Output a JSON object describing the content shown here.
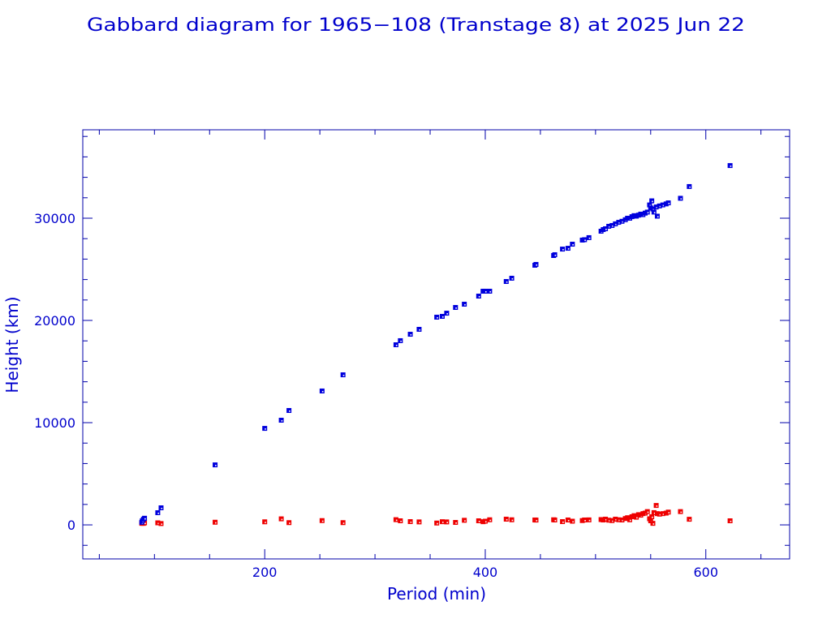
{
  "chart_data": {
    "type": "scatter",
    "title": "Gabbard diagram for 1965−108 (Transtage 8) at 2025 Jun 22",
    "xlabel": "Period (min)",
    "ylabel": "Height (km)",
    "xlim": [
      35,
      676
    ],
    "ylim": [
      -3330,
      38650
    ],
    "x_ticks": [
      200,
      400,
      600
    ],
    "x_minor_step": 50,
    "y_ticks": [
      0,
      10000,
      20000,
      30000
    ],
    "y_minor_step": 2000,
    "grid": false,
    "axis_color": "#0000aa",
    "series": [
      {
        "key": "apogee",
        "color": "#0000dd"
      },
      {
        "key": "perigee",
        "color": "#ee0000"
      }
    ],
    "points_columns": [
      "period",
      "apogee",
      "perigee"
    ],
    "points": [
      [
        88.5,
        250,
        150
      ],
      [
        89,
        400,
        180
      ],
      [
        90,
        550,
        150
      ],
      [
        91,
        650,
        200
      ],
      [
        103,
        1190,
        200
      ],
      [
        106,
        1670,
        130
      ],
      [
        155,
        5870,
        260
      ],
      [
        200,
        9440,
        300
      ],
      [
        215,
        10240,
        590
      ],
      [
        222,
        11190,
        220
      ],
      [
        252,
        13100,
        420
      ],
      [
        271,
        14680,
        220
      ],
      [
        319,
        17620,
        510
      ],
      [
        323,
        18020,
        400
      ],
      [
        332,
        18650,
        320
      ],
      [
        340,
        19130,
        290
      ],
      [
        356,
        20320,
        180
      ],
      [
        361,
        20400,
        310
      ],
      [
        365,
        20710,
        290
      ],
      [
        373,
        21270,
        240
      ],
      [
        381,
        21590,
        450
      ],
      [
        394,
        22380,
        400
      ],
      [
        398,
        22860,
        310
      ],
      [
        400,
        22860,
        360
      ],
      [
        404,
        22860,
        500
      ],
      [
        419,
        23810,
        560
      ],
      [
        424,
        24130,
        500
      ],
      [
        445,
        25400,
        480
      ],
      [
        446,
        25480,
        470
      ],
      [
        462,
        26350,
        500
      ],
      [
        463,
        26430,
        480
      ],
      [
        470,
        26980,
        320
      ],
      [
        475,
        27060,
        480
      ],
      [
        479,
        27460,
        360
      ],
      [
        488,
        27860,
        420
      ],
      [
        490,
        27900,
        480
      ],
      [
        494,
        28100,
        490
      ],
      [
        505,
        28730,
        520
      ],
      [
        507,
        28890,
        480
      ],
      [
        509,
        28970,
        560
      ],
      [
        512,
        29210,
        460
      ],
      [
        515,
        29290,
        420
      ],
      [
        518,
        29450,
        560
      ],
      [
        521,
        29600,
        500
      ],
      [
        524,
        29700,
        480
      ],
      [
        527,
        29850,
        620
      ],
      [
        529,
        30000,
        700
      ],
      [
        531,
        30000,
        500
      ],
      [
        533,
        30150,
        800
      ],
      [
        535,
        30250,
        900
      ],
      [
        537,
        30200,
        750
      ],
      [
        539,
        30300,
        1000
      ],
      [
        541,
        30400,
        950
      ],
      [
        543,
        30350,
        1100
      ],
      [
        545,
        30500,
        1150
      ],
      [
        547,
        30600,
        1300
      ],
      [
        549,
        31300,
        600
      ],
      [
        550,
        31000,
        400
      ],
      [
        551,
        31700,
        800
      ],
      [
        552,
        30900,
        150
      ],
      [
        553,
        30600,
        1200
      ],
      [
        555,
        31100,
        1900
      ],
      [
        556,
        30200,
        1100
      ],
      [
        558,
        31200,
        1050
      ],
      [
        561,
        31300,
        1100
      ],
      [
        564,
        31400,
        1150
      ],
      [
        566,
        31500,
        1250
      ],
      [
        577,
        31950,
        1300
      ],
      [
        585,
        33100,
        550
      ],
      [
        622,
        35150,
        400
      ]
    ]
  }
}
